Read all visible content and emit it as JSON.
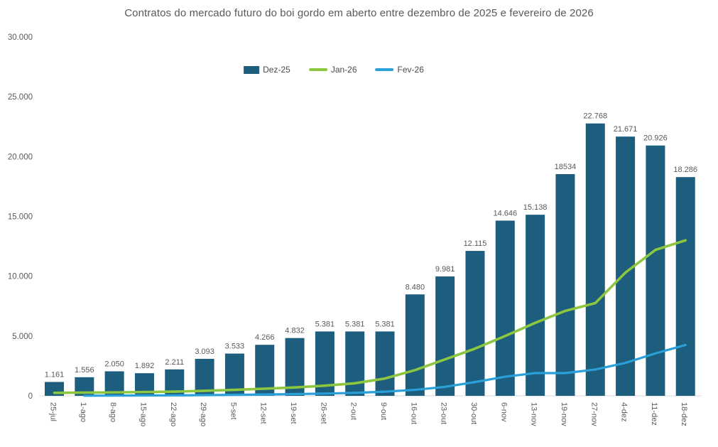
{
  "chart_data": {
    "type": "bar",
    "subtype": "combo-bar-line",
    "title": "Contratos do mercado futuro do boi gordo em aberto entre dezembro de 2025 e fevereiro de 2026",
    "legend_position": "top",
    "grid": false,
    "categories": [
      "25-jul",
      "1-ago",
      "8-ago",
      "15-ago",
      "22-ago",
      "29-ago",
      "5-set",
      "12-set",
      "19-set",
      "26-set",
      "2-out",
      "9-out",
      "16-out",
      "23-out",
      "30-out",
      "6-nov",
      "13-nov",
      "19-nov",
      "27-nov",
      "4-dez",
      "11-dez",
      "18-dez"
    ],
    "series": [
      {
        "name": "Dez-25",
        "type": "bar",
        "color": "#1d5d7d",
        "values": [
          1161,
          1556,
          2050,
          1892,
          2211,
          3093,
          3533,
          4266,
          4832,
          5381,
          5381,
          5381,
          8480,
          9981,
          12115,
          14646,
          15138,
          18534,
          22768,
          21671,
          20926,
          18286
        ],
        "labels": [
          "1.161",
          "1.556",
          "2.050",
          "1.892",
          "2.211",
          "3.093",
          "3.533",
          "4.266",
          "4.832",
          "5.381",
          "5.381",
          "5.381",
          "8.480",
          "9.981",
          "12.115",
          "14.646",
          "15.138",
          "18534",
          "22.768",
          "21.671",
          "20.926",
          "18.286"
        ]
      },
      {
        "name": "Jan-26",
        "type": "line",
        "color": "#8dc63f",
        "values": [
          250,
          270,
          290,
          320,
          350,
          420,
          500,
          600,
          700,
          850,
          1050,
          1450,
          2150,
          3050,
          3950,
          5000,
          6100,
          7100,
          7750,
          10300,
          12200,
          13000
        ]
      },
      {
        "name": "Fev-26",
        "type": "line",
        "color": "#29a0d8",
        "values": [
          null,
          10,
          20,
          30,
          40,
          60,
          80,
          110,
          150,
          190,
          250,
          350,
          500,
          750,
          1150,
          1600,
          1900,
          1900,
          2200,
          2750,
          3550,
          4250
        ]
      }
    ],
    "y_axis": {
      "min": 0,
      "max": 30000,
      "ticks": [
        {
          "label": "0",
          "value": 0
        },
        {
          "label": "5.000",
          "value": 5000
        },
        {
          "label": "10.000",
          "value": 10000
        },
        {
          "label": "15.000",
          "value": 15000
        },
        {
          "label": "20.000",
          "value": 20000
        },
        {
          "label": "25.000",
          "value": 25000
        },
        {
          "label": "30.000",
          "value": 30000
        }
      ]
    }
  },
  "colors": {
    "text": "#595959",
    "axis_line": "#d9d9d9",
    "background": "#ffffff"
  }
}
